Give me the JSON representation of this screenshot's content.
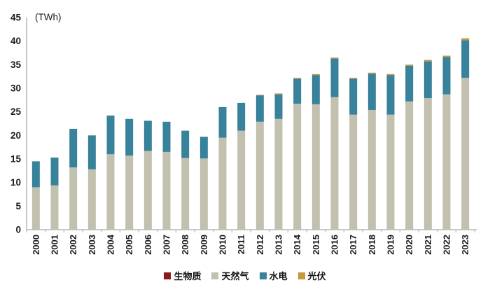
{
  "chart_data": {
    "type": "bar",
    "stacked": true,
    "title": "",
    "unit_label": "(TWh)",
    "xlabel": "",
    "ylabel": "",
    "ylim": [
      0,
      45
    ],
    "ytick_step": 5,
    "yticks": [
      "0",
      "5",
      "10",
      "15",
      "20",
      "25",
      "30",
      "35",
      "40",
      "45"
    ],
    "grid": false,
    "legend_position": "bottom",
    "categories": [
      "2000",
      "2001",
      "2002",
      "2003",
      "2004",
      "2005",
      "2006",
      "2007",
      "2008",
      "2009",
      "2010",
      "2011",
      "2012",
      "2013",
      "2014",
      "2015",
      "2016",
      "2017",
      "2018",
      "2019",
      "2020",
      "2021",
      "2022",
      "2023"
    ],
    "series": [
      {
        "name": "生物质",
        "color": "#8B1A1A",
        "values": [
          0,
          0,
          0,
          0,
          0,
          0,
          0,
          0,
          0,
          0,
          0,
          0,
          0,
          0,
          0,
          0,
          0,
          0,
          0,
          0,
          0,
          0,
          0,
          0
        ]
      },
      {
        "name": "天然气",
        "color": "#C2C0AF",
        "values": [
          9.0,
          9.4,
          13.2,
          12.8,
          16.0,
          15.7,
          16.7,
          16.5,
          15.2,
          15.1,
          19.5,
          21.0,
          22.9,
          23.5,
          26.7,
          26.6,
          28.1,
          24.4,
          25.4,
          24.4,
          27.2,
          27.9,
          28.7,
          32.2
        ]
      },
      {
        "name": "水电",
        "color": "#38839B",
        "values": [
          5.5,
          5.9,
          8.2,
          7.2,
          8.2,
          7.8,
          6.4,
          6.4,
          5.8,
          4.6,
          6.5,
          5.9,
          5.6,
          5.2,
          5.3,
          6.2,
          8.2,
          7.6,
          7.7,
          8.4,
          7.6,
          7.8,
          7.9,
          8.0
        ]
      },
      {
        "name": "光伏",
        "color": "#C49A3E",
        "values": [
          0,
          0,
          0,
          0,
          0,
          0,
          0,
          0,
          0,
          0,
          0,
          0,
          0.1,
          0.2,
          0.2,
          0.2,
          0.2,
          0.2,
          0.2,
          0.2,
          0.2,
          0.3,
          0.3,
          0.4
        ]
      }
    ]
  },
  "colors": {
    "axis": "#B5B5B5",
    "tick_text": "#1a1a1a",
    "background": "#FFFFFF"
  }
}
